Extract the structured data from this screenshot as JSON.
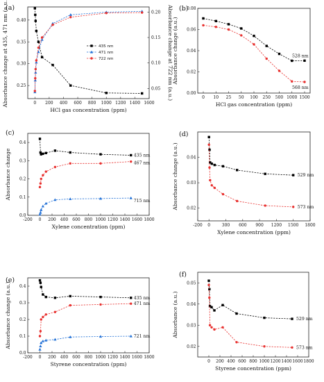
{
  "figure": {
    "panels": [
      "a",
      "b",
      "c",
      "d",
      "e",
      "f"
    ]
  },
  "chart_data": [
    {
      "panel_label": "(a)",
      "type": "line",
      "xlabel": "HCl gas concentration (ppm)",
      "ylabel": "Absorbance change at 435, 471 nm (a.u.)",
      "ylabel2": "Absorbance change at 722 nm (a.u.)",
      "xlim": [
        -100,
        1600
      ],
      "ylim": [
        0.22,
        0.43
      ],
      "y2lim": [
        0.03,
        0.21
      ],
      "xticks": [
        0,
        200,
        400,
        600,
        800,
        1000,
        1200,
        1400,
        1600
      ],
      "yticks": [
        0.25,
        0.3,
        0.35,
        0.4
      ],
      "yticks_labels": [
        "0.25",
        "0.30",
        "0.35",
        "0.40"
      ],
      "y2ticks": [
        0.05,
        0.1,
        0.15,
        0.2
      ],
      "y2ticks_labels": [
        "0.05",
        "0.10",
        "0.15",
        "0.20"
      ],
      "legend": "top-right",
      "series": [
        {
          "name": "435 nm",
          "color": "#000000",
          "marker": "square",
          "axis": "left",
          "x": [
            0,
            5,
            10,
            20,
            50,
            100,
            250,
            500,
            1000,
            1500
          ],
          "y": [
            0.427,
            0.412,
            0.398,
            0.375,
            0.35,
            0.315,
            0.297,
            0.25,
            0.233,
            0.232
          ]
        },
        {
          "name": "471 nm",
          "color": "#1f6fd6",
          "marker": "triangle",
          "axis": "left",
          "x": [
            0,
            5,
            10,
            20,
            50,
            100,
            250,
            500,
            1000,
            1500
          ],
          "y": [
            0.235,
            0.262,
            0.28,
            0.303,
            0.327,
            0.355,
            0.392,
            0.412,
            0.418,
            0.42
          ]
        },
        {
          "name": "722 nm",
          "color": "#e8312f",
          "marker": "circle",
          "axis": "right",
          "x": [
            0,
            5,
            10,
            20,
            50,
            100,
            250,
            500,
            1000,
            1500
          ],
          "y": [
            0.045,
            0.07,
            0.088,
            0.105,
            0.13,
            0.15,
            0.175,
            0.19,
            0.198,
            0.199
          ]
        }
      ]
    },
    {
      "panel_label": "(b)",
      "type": "line",
      "xlabel": "HCl gas concentration (ppm)",
      "ylabel": "Absorbance change (a.u.)",
      "ylim": [
        0.0,
        0.08
      ],
      "xcategories": [
        "0",
        "10",
        "25",
        "50",
        "100",
        "250",
        "500",
        "1000",
        "1500"
      ],
      "yticks": [
        0.0,
        0.02,
        0.04,
        0.06,
        0.08
      ],
      "yticks_labels": [
        "0.00",
        "0.02",
        "0.04",
        "0.06",
        "0.08"
      ],
      "series": [
        {
          "name": "528 nm",
          "color": "#000000",
          "marker": "square",
          "y": [
            0.0705,
            0.068,
            0.065,
            0.061,
            0.054,
            0.0445,
            0.037,
            0.0305,
            0.0306
          ]
        },
        {
          "name": "568 nm",
          "color": "#e8312f",
          "marker": "circle",
          "y": [
            0.064,
            0.0625,
            0.06,
            0.0545,
            0.046,
            0.0325,
            0.021,
            0.011,
            0.0105
          ]
        }
      ]
    },
    {
      "panel_label": "(c)",
      "type": "line",
      "xlabel": "Xylene concentration (ppm)",
      "ylabel": "Absorbance change",
      "xlim": [
        -200,
        1800
      ],
      "ylim": [
        0.0,
        0.45
      ],
      "xticks": [
        -200,
        0,
        200,
        400,
        600,
        800,
        1000,
        1200,
        1400,
        1600,
        1800
      ],
      "yticks": [
        0.0,
        0.1,
        0.2,
        0.3,
        0.4
      ],
      "yticks_labels": [
        "0.0",
        "0.1",
        "0.2",
        "0.3",
        "0.4"
      ],
      "series": [
        {
          "name": "435 nm",
          "color": "#000000",
          "marker": "square",
          "x": [
            0,
            10,
            20,
            50,
            100,
            250,
            500,
            1000,
            1500
          ],
          "y": [
            0.42,
            0.345,
            0.335,
            0.338,
            0.342,
            0.355,
            0.345,
            0.335,
            0.33
          ]
        },
        {
          "name": "467 nm",
          "color": "#e8312f",
          "marker": "circle",
          "x": [
            0,
            10,
            20,
            50,
            100,
            250,
            500,
            1000,
            1500
          ],
          "y": [
            0.155,
            0.175,
            0.2,
            0.22,
            0.24,
            0.265,
            0.285,
            0.285,
            0.295
          ]
        },
        {
          "name": "715 nm",
          "color": "#1f6fd6",
          "marker": "triangle",
          "x": [
            0,
            10,
            20,
            50,
            100,
            250,
            500,
            1000,
            1500
          ],
          "y": [
            0.005,
            0.015,
            0.03,
            0.05,
            0.065,
            0.085,
            0.09,
            0.092,
            0.095
          ]
        }
      ]
    },
    {
      "panel_label": "(d)",
      "type": "line",
      "xlabel": "Xylene concentration (ppm)",
      "ylabel": "Absorbance change (a.u.)",
      "xlim": [
        -200,
        1800
      ],
      "ylim": [
        0.015,
        0.05
      ],
      "xticks": [
        -200,
        0,
        300,
        600,
        900,
        1200,
        1500,
        1800
      ],
      "yticks": [
        0.02,
        0.03,
        0.04
      ],
      "yticks_labels": [
        "0.02",
        "0.03",
        "0.04"
      ],
      "series": [
        {
          "name": "529 nm",
          "color": "#000000",
          "marker": "square",
          "x": [
            0,
            10,
            20,
            50,
            100,
            250,
            500,
            1000,
            1500
          ],
          "y": [
            0.048,
            0.043,
            0.038,
            0.0375,
            0.037,
            0.0365,
            0.035,
            0.0335,
            0.033
          ]
        },
        {
          "name": "573 nm",
          "color": "#e8312f",
          "marker": "circle",
          "x": [
            0,
            10,
            20,
            50,
            100,
            250,
            500,
            1000,
            1500
          ],
          "y": [
            0.045,
            0.036,
            0.031,
            0.029,
            0.028,
            0.0255,
            0.0228,
            0.021,
            0.0205
          ]
        }
      ]
    },
    {
      "panel_label": "(e)",
      "type": "line",
      "xlabel": "Styrene concentration (ppm)",
      "ylabel": "Absorbance change (a.u.)",
      "xlim": [
        -200,
        1800
      ],
      "ylim": [
        0.0,
        0.45
      ],
      "xticks": [
        -200,
        0,
        200,
        400,
        600,
        800,
        1000,
        1200,
        1400,
        1600,
        1800
      ],
      "yticks": [
        0.0,
        0.1,
        0.2,
        0.3,
        0.4
      ],
      "yticks_labels": [
        "0.0",
        "0.1",
        "0.2",
        "0.3",
        "0.4"
      ],
      "series": [
        {
          "name": "435 nm",
          "color": "#000000",
          "marker": "square",
          "x": [
            0,
            10,
            20,
            50,
            100,
            250,
            500,
            1000,
            1500
          ],
          "y": [
            0.435,
            0.42,
            0.395,
            0.35,
            0.335,
            0.33,
            0.34,
            0.335,
            0.33
          ]
        },
        {
          "name": "471 nm",
          "color": "#e8312f",
          "marker": "circle",
          "x": [
            0,
            10,
            20,
            50,
            100,
            250,
            500,
            1000,
            1500
          ],
          "y": [
            0.1,
            0.13,
            0.2,
            0.215,
            0.23,
            0.245,
            0.285,
            0.29,
            0.295
          ]
        },
        {
          "name": "721 nm",
          "color": "#1f6fd6",
          "marker": "triangle",
          "x": [
            0,
            10,
            20,
            50,
            100,
            250,
            500,
            1000,
            1500
          ],
          "y": [
            0.02,
            0.04,
            0.06,
            0.07,
            0.075,
            0.08,
            0.095,
            0.098,
            0.1
          ]
        }
      ]
    },
    {
      "panel_label": "(f)",
      "type": "line",
      "xlabel": "Styrene concentration (ppm)",
      "ylabel": "Absorbance (a.u.)",
      "xlim": [
        -200,
        1800
      ],
      "ylim": [
        0.015,
        0.055
      ],
      "xticks": [
        0,
        200,
        400,
        600,
        800,
        1000,
        1200,
        1400,
        1600,
        1800
      ],
      "yticks": [
        0.02,
        0.03,
        0.04,
        0.05
      ],
      "yticks_labels": [
        "0.02",
        "0.03",
        "0.04",
        "0.05"
      ],
      "series": [
        {
          "name": "529 nm",
          "color": "#000000",
          "marker": "square",
          "x": [
            0,
            10,
            20,
            50,
            100,
            250,
            500,
            1000,
            1500
          ],
          "y": [
            0.051,
            0.047,
            0.039,
            0.0385,
            0.037,
            0.0395,
            0.0355,
            0.0335,
            0.033
          ]
        },
        {
          "name": "573 nm",
          "color": "#e8312f",
          "marker": "circle",
          "x": [
            0,
            10,
            20,
            50,
            100,
            250,
            500,
            1000,
            1500
          ],
          "y": [
            0.049,
            0.043,
            0.03,
            0.029,
            0.028,
            0.029,
            0.022,
            0.02,
            0.0195
          ]
        }
      ]
    }
  ]
}
